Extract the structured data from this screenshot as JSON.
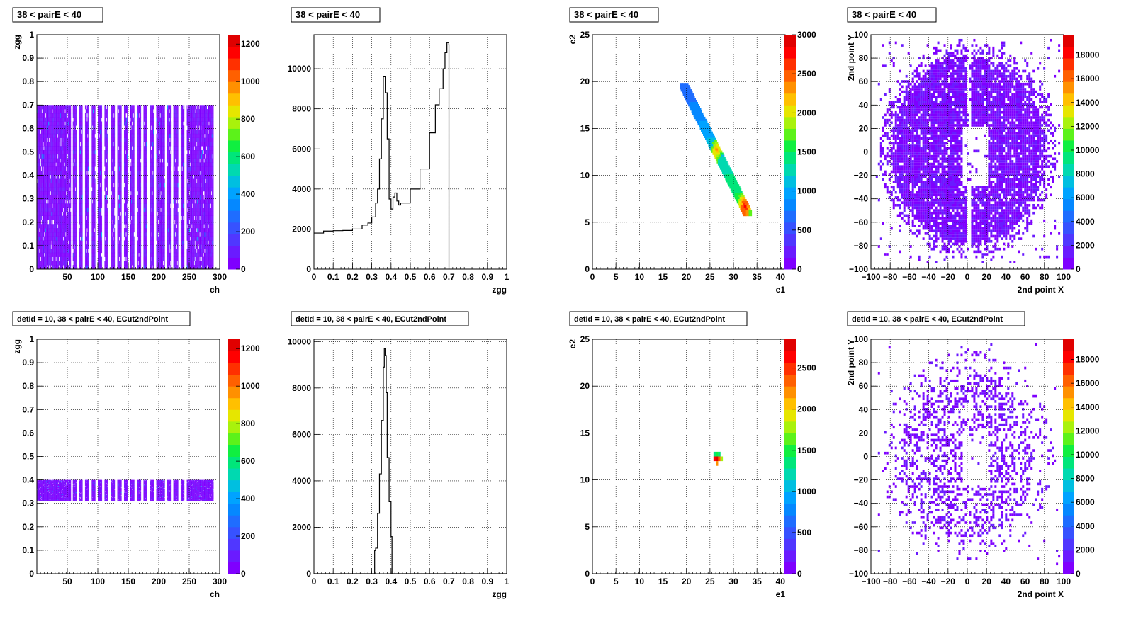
{
  "colorbar_colors": [
    "#7f00ff",
    "#6a1bff",
    "#5037ff",
    "#3752ff",
    "#1f6dff",
    "#0588ff",
    "#00a3ff",
    "#00bfe0",
    "#00d9b0",
    "#00e67a",
    "#10ef40",
    "#5cf21a",
    "#a9f20c",
    "#e6e600",
    "#ffc000",
    "#ff9000",
    "#ff6000",
    "#ff3000",
    "#ff0000",
    "#e00000"
  ],
  "chart_data": [
    {
      "type": "heatmap",
      "title": "38 < pairE < 40",
      "xlabel": "ch",
      "ylabel": "zgg",
      "xlim": [
        0,
        300
      ],
      "ylim": [
        0,
        1
      ],
      "xticks": [
        50,
        100,
        150,
        200,
        250,
        300
      ],
      "yticks": [
        0,
        0.1,
        0.2,
        0.3,
        0.4,
        0.5,
        0.6,
        0.7,
        0.8,
        0.9,
        1
      ],
      "x_tick_labels": [
        "50",
        "100",
        "150",
        "200",
        "250",
        "300"
      ],
      "y_tick_labels": [
        "0",
        "0.1",
        "0.2",
        "0.3",
        "0.4",
        "0.5",
        "0.6",
        "0.7",
        "0.8",
        "0.9",
        "1"
      ],
      "zlim": [
        0,
        1250
      ],
      "z_ticks": [
        0,
        200,
        400,
        600,
        800,
        1000,
        1200
      ],
      "z_tick_labels": [
        "0",
        "200",
        "400",
        "600",
        "800",
        "1000",
        "1200"
      ],
      "x_filled_range": [
        0,
        290
      ],
      "y_band": [
        0.0,
        0.7
      ],
      "empty_channel_ranges": [
        [
          56,
          59
        ],
        [
          65,
          69
        ],
        [
          75,
          79
        ],
        [
          86,
          90
        ],
        [
          96,
          100
        ],
        [
          107,
          111
        ],
        [
          117,
          121
        ],
        [
          128,
          132
        ],
        [
          139,
          143
        ],
        [
          149,
          153
        ],
        [
          160,
          164
        ],
        [
          171,
          175
        ],
        [
          181,
          185
        ],
        [
          192,
          196
        ],
        [
          210,
          213
        ],
        [
          221,
          224
        ],
        [
          232,
          236
        ],
        [
          242,
          246
        ]
      ],
      "grid": true
    },
    {
      "type": "line",
      "title": "38 < pairE < 40",
      "xlabel": "zgg",
      "ylabel": "",
      "xlim": [
        0,
        1
      ],
      "ylim": [
        0,
        11700
      ],
      "xticks": [
        0,
        0.1,
        0.2,
        0.3,
        0.4,
        0.5,
        0.6,
        0.7,
        0.8,
        0.9,
        1
      ],
      "yticks": [
        0,
        2000,
        4000,
        6000,
        8000,
        10000
      ],
      "x_tick_labels": [
        "0",
        "0.1",
        "0.2",
        "0.3",
        "0.4",
        "0.5",
        "0.6",
        "0.7",
        "0.8",
        "0.9",
        "1"
      ],
      "y_tick_labels": [
        "0",
        "2000",
        "4000",
        "6000",
        "8000",
        "10000"
      ],
      "x": [
        0.0,
        0.05,
        0.1,
        0.15,
        0.2,
        0.25,
        0.28,
        0.3,
        0.32,
        0.33,
        0.34,
        0.35,
        0.36,
        0.37,
        0.38,
        0.39,
        0.4,
        0.41,
        0.42,
        0.43,
        0.44,
        0.45,
        0.5,
        0.55,
        0.6,
        0.63,
        0.65,
        0.67,
        0.68,
        0.69,
        0.7,
        0.7005
      ],
      "y": [
        1800,
        1900,
        1920,
        1930,
        2000,
        2200,
        2300,
        2600,
        3300,
        4000,
        5500,
        7500,
        9600,
        8800,
        6500,
        3500,
        3000,
        3600,
        3800,
        3400,
        3200,
        3300,
        4000,
        5000,
        6800,
        8200,
        9000,
        10000,
        10800,
        11300,
        11200,
        0
      ],
      "grid": true
    },
    {
      "type": "heatmap",
      "title": "38 < pairE < 40",
      "xlabel": "e1",
      "ylabel": "e2",
      "xlim": [
        0,
        41
      ],
      "ylim": [
        0,
        25
      ],
      "xticks": [
        0,
        5,
        10,
        15,
        20,
        25,
        30,
        35,
        40
      ],
      "yticks": [
        0,
        5,
        10,
        15,
        20,
        25
      ],
      "x_tick_labels": [
        "0",
        "5",
        "10",
        "15",
        "20",
        "25",
        "30",
        "35",
        "40"
      ],
      "y_tick_labels": [
        "0",
        "5",
        "10",
        "15",
        "20",
        "25"
      ],
      "zlim": [
        0,
        3000
      ],
      "z_ticks": [
        0,
        500,
        1000,
        1500,
        2000,
        2500,
        3000
      ],
      "z_tick_labels": [
        "0",
        "500",
        "1000",
        "1500",
        "2000",
        "2500",
        "3000"
      ],
      "diagonal_band": {
        "x_start": 19.5,
        "y_start": 19.5,
        "x_end": 33,
        "y_end": 6,
        "width": 1.3
      },
      "hotspots": [
        [
          26.5,
          12.5,
          2400
        ],
        [
          32.5,
          6.5,
          2900
        ],
        [
          32,
          7,
          2300
        ]
      ],
      "grid": true
    },
    {
      "type": "heatmap",
      "title": "38 < pairE < 40",
      "xlabel": "2nd point X",
      "ylabel": "2nd point Y",
      "xlim": [
        -100,
        100
      ],
      "ylim": [
        -100,
        100
      ],
      "xticks": [
        -100,
        -80,
        -60,
        -40,
        -20,
        0,
        20,
        40,
        60,
        80,
        100
      ],
      "yticks": [
        -100,
        -80,
        -60,
        -40,
        -20,
        0,
        20,
        40,
        60,
        80,
        100
      ],
      "x_tick_labels": [
        "−100",
        "−80",
        "−60",
        "−40",
        "−20",
        "0",
        "20",
        "40",
        "60",
        "80",
        "100"
      ],
      "y_tick_labels": [
        "−100",
        "−80",
        "−60",
        "−40",
        "−20",
        "0",
        "20",
        "40",
        "60",
        "80",
        "100"
      ],
      "zlim": [
        0,
        19700
      ],
      "z_ticks": [
        0,
        2000,
        4000,
        6000,
        8000,
        10000,
        12000,
        14000,
        16000,
        18000
      ],
      "z_tick_labels": [
        "0",
        "2000",
        "4000",
        "6000",
        "8000",
        "10000",
        "12000",
        "14000",
        "16000",
        "18000"
      ],
      "density": "ring_dense",
      "grid": true
    },
    {
      "type": "heatmap",
      "title": "detId = 10, 38 < pairE < 40, ECut2ndPoint",
      "xlabel": "ch",
      "ylabel": "zgg",
      "xlim": [
        0,
        300
      ],
      "ylim": [
        0,
        1
      ],
      "xticks": [
        50,
        100,
        150,
        200,
        250,
        300
      ],
      "yticks": [
        0,
        0.1,
        0.2,
        0.3,
        0.4,
        0.5,
        0.6,
        0.7,
        0.8,
        0.9,
        1
      ],
      "x_tick_labels": [
        "50",
        "100",
        "150",
        "200",
        "250",
        "300"
      ],
      "y_tick_labels": [
        "0",
        "0.1",
        "0.2",
        "0.3",
        "0.4",
        "0.5",
        "0.6",
        "0.7",
        "0.8",
        "0.9",
        "1"
      ],
      "zlim": [
        0,
        1250
      ],
      "z_ticks": [
        0,
        200,
        400,
        600,
        800,
        1000,
        1200
      ],
      "z_tick_labels": [
        "0",
        "200",
        "400",
        "600",
        "800",
        "1000",
        "1200"
      ],
      "x_filled_range": [
        0,
        290
      ],
      "y_band": [
        0.31,
        0.4
      ],
      "empty_channel_ranges": [
        [
          56,
          59
        ],
        [
          65,
          69
        ],
        [
          75,
          79
        ],
        [
          86,
          90
        ],
        [
          96,
          100
        ],
        [
          107,
          111
        ],
        [
          117,
          121
        ],
        [
          128,
          132
        ],
        [
          139,
          143
        ],
        [
          149,
          153
        ],
        [
          160,
          164
        ],
        [
          171,
          175
        ],
        [
          181,
          185
        ],
        [
          192,
          196
        ],
        [
          210,
          213
        ],
        [
          221,
          224
        ],
        [
          232,
          236
        ],
        [
          242,
          246
        ]
      ],
      "grid": true
    },
    {
      "type": "line",
      "title": "detId = 10, 38 < pairE < 40, ECut2ndPoint",
      "xlabel": "zgg",
      "ylabel": "",
      "xlim": [
        0,
        1
      ],
      "ylim": [
        0,
        10100
      ],
      "xticks": [
        0,
        0.1,
        0.2,
        0.3,
        0.4,
        0.5,
        0.6,
        0.7,
        0.8,
        0.9,
        1
      ],
      "yticks": [
        0,
        2000,
        4000,
        6000,
        8000,
        10000
      ],
      "x_tick_labels": [
        "0",
        "0.1",
        "0.2",
        "0.3",
        "0.4",
        "0.5",
        "0.6",
        "0.7",
        "0.8",
        "0.9",
        "1"
      ],
      "y_tick_labels": [
        "0",
        "2000",
        "4000",
        "6000",
        "8000",
        "10000"
      ],
      "x": [
        0.0,
        0.31,
        0.315,
        0.32,
        0.33,
        0.34,
        0.35,
        0.36,
        0.365,
        0.37,
        0.375,
        0.38,
        0.39,
        0.4,
        0.405,
        1.0
      ],
      "y": [
        0,
        0,
        1000,
        1100,
        2600,
        4300,
        6600,
        8900,
        9700,
        9400,
        7800,
        5000,
        3100,
        1600,
        0,
        0
      ],
      "grid": true
    },
    {
      "type": "heatmap",
      "title": "detId = 10, 38 < pairE < 40, ECut2ndPoint",
      "xlabel": "e1",
      "ylabel": "e2",
      "xlim": [
        0,
        41
      ],
      "ylim": [
        0,
        25
      ],
      "xticks": [
        0,
        5,
        10,
        15,
        20,
        25,
        30,
        35,
        40
      ],
      "yticks": [
        0,
        5,
        10,
        15,
        20,
        25
      ],
      "x_tick_labels": [
        "0",
        "5",
        "10",
        "15",
        "20",
        "25",
        "30",
        "35",
        "40"
      ],
      "y_tick_labels": [
        "0",
        "5",
        "10",
        "15",
        "20",
        "25"
      ],
      "zlim": [
        0,
        2850
      ],
      "z_ticks": [
        0,
        500,
        1000,
        1500,
        2000,
        2500
      ],
      "z_tick_labels": [
        "0",
        "500",
        "1000",
        "1500",
        "2000",
        "2500"
      ],
      "cluster": [
        [
          26.0,
          12.75,
          1400
        ],
        [
          26.5,
          12.75,
          1500
        ],
        [
          27.0,
          12.75,
          1300
        ],
        [
          26.0,
          12.25,
          2600
        ],
        [
          26.5,
          12.25,
          2800
        ],
        [
          27.0,
          12.25,
          2400
        ],
        [
          27.5,
          12.25,
          1800
        ],
        [
          26.5,
          11.75,
          2200
        ]
      ],
      "grid": true
    },
    {
      "type": "heatmap",
      "title": "detId = 10, 38 < pairE < 40, ECut2ndPoint",
      "xlabel": "2nd point X",
      "ylabel": "2nd point Y",
      "xlim": [
        -100,
        100
      ],
      "ylim": [
        -100,
        100
      ],
      "xticks": [
        -100,
        -80,
        -60,
        -40,
        -20,
        0,
        20,
        40,
        60,
        80,
        100
      ],
      "yticks": [
        -100,
        -80,
        -60,
        -40,
        -20,
        0,
        20,
        40,
        60,
        80,
        100
      ],
      "x_tick_labels": [
        "−100",
        "−80",
        "−60",
        "−40",
        "−20",
        "0",
        "20",
        "40",
        "60",
        "80",
        "100"
      ],
      "y_tick_labels": [
        "−100",
        "−80",
        "−60",
        "−40",
        "−20",
        "0",
        "20",
        "40",
        "60",
        "80",
        "100"
      ],
      "zlim": [
        0,
        19700
      ],
      "z_ticks": [
        0,
        2000,
        4000,
        6000,
        8000,
        10000,
        12000,
        14000,
        16000,
        18000
      ],
      "z_tick_labels": [
        "0",
        "2000",
        "4000",
        "6000",
        "8000",
        "10000",
        "12000",
        "14000",
        "16000",
        "18000"
      ],
      "density": "ring_sparse",
      "grid": true
    }
  ]
}
